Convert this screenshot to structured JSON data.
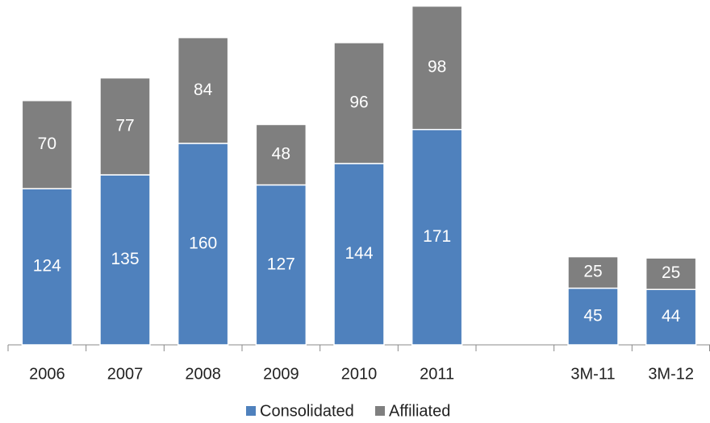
{
  "chart_data": {
    "type": "stacked-bar",
    "categories": [
      "2006",
      "2007",
      "2008",
      "2009",
      "2010",
      "2011",
      null,
      "3M-11",
      "3M-12"
    ],
    "series": [
      {
        "name": "Consolidated",
        "color": "#4f81bd",
        "values": [
          124,
          135,
          160,
          127,
          144,
          171,
          null,
          45,
          44
        ]
      },
      {
        "name": "Affiliated",
        "color": "#7f7f7f",
        "values": [
          70,
          77,
          84,
          48,
          96,
          98,
          null,
          25,
          25
        ]
      }
    ],
    "ylim": [
      0,
      270
    ],
    "legend": "bottom"
  }
}
